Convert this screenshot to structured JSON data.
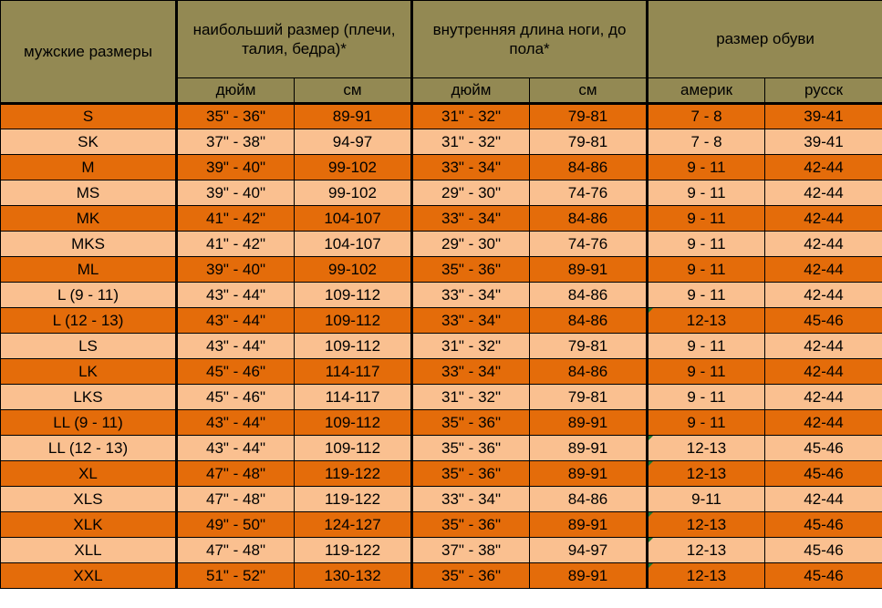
{
  "header": {
    "size_label": "мужские размеры",
    "girth_label": "наибольший размер (плечи, талия, бедра)*",
    "inseam_label": "внутренняя длина ноги, до пола*",
    "shoe_label": "размер обуви",
    "units": {
      "girth_inch": "дюйм",
      "girth_cm": "см",
      "inseam_inch": "дюйм",
      "inseam_cm": "см",
      "shoe_us": "америк",
      "shoe_ru": "русск"
    }
  },
  "rows": [
    {
      "size": "S",
      "girth_in": "35\" - 36\"",
      "girth_cm": "89-91",
      "inseam_in": "31\" - 32\"",
      "inseam_cm": "79-81",
      "shoe_us": "7 - 8",
      "shoe_ru": "39-41"
    },
    {
      "size": "SK",
      "girth_in": "37\" - 38\"",
      "girth_cm": "94-97",
      "inseam_in": "31\" - 32\"",
      "inseam_cm": "79-81",
      "shoe_us": "7 - 8",
      "shoe_ru": "39-41"
    },
    {
      "size": "M",
      "girth_in": "39\" - 40\"",
      "girth_cm": "99-102",
      "inseam_in": "33\" - 34\"",
      "inseam_cm": "84-86",
      "shoe_us": "9 - 11",
      "shoe_ru": "42-44"
    },
    {
      "size": "MS",
      "girth_in": "39\" - 40\"",
      "girth_cm": "99-102",
      "inseam_in": "29\" - 30\"",
      "inseam_cm": "74-76",
      "shoe_us": "9 - 11",
      "shoe_ru": "42-44"
    },
    {
      "size": "MK",
      "girth_in": "41\" - 42\"",
      "girth_cm": "104-107",
      "inseam_in": "33\" - 34\"",
      "inseam_cm": "84-86",
      "shoe_us": "9 - 11",
      "shoe_ru": "42-44"
    },
    {
      "size": "MKS",
      "girth_in": "41\" - 42\"",
      "girth_cm": "104-107",
      "inseam_in": "29\" - 30\"",
      "inseam_cm": "74-76",
      "shoe_us": "9 - 11",
      "shoe_ru": "42-44"
    },
    {
      "size": "ML",
      "girth_in": "39\" - 40\"",
      "girth_cm": "99-102",
      "inseam_in": "35\" - 36\"",
      "inseam_cm": "89-91",
      "shoe_us": "9 - 11",
      "shoe_ru": "42-44"
    },
    {
      "size": "L (9 - 11)",
      "girth_in": "43\" - 44\"",
      "girth_cm": "109-112",
      "inseam_in": "33\" - 34\"",
      "inseam_cm": "84-86",
      "shoe_us": "9 - 11",
      "shoe_ru": "42-44"
    },
    {
      "size": "L (12 - 13)",
      "girth_in": "43\" - 44\"",
      "girth_cm": "109-112",
      "inseam_in": "33\" - 34\"",
      "inseam_cm": "84-86",
      "shoe_us": "12-13",
      "shoe_ru": "45-46",
      "marker": true
    },
    {
      "size": "LS",
      "girth_in": "43\" - 44\"",
      "girth_cm": "109-112",
      "inseam_in": "31\" - 32\"",
      "inseam_cm": "79-81",
      "shoe_us": "9 - 11",
      "shoe_ru": "42-44"
    },
    {
      "size": "LK",
      "girth_in": "45\" - 46\"",
      "girth_cm": "114-117",
      "inseam_in": "33\" - 34\"",
      "inseam_cm": "84-86",
      "shoe_us": "9 - 11",
      "shoe_ru": "42-44"
    },
    {
      "size": "LKS",
      "girth_in": "45\" - 46\"",
      "girth_cm": "114-117",
      "inseam_in": "31\" - 32\"",
      "inseam_cm": "79-81",
      "shoe_us": "9 - 11",
      "shoe_ru": "42-44"
    },
    {
      "size": "LL (9 - 11)",
      "girth_in": "43\" - 44\"",
      "girth_cm": "109-112",
      "inseam_in": "35\" - 36\"",
      "inseam_cm": "89-91",
      "shoe_us": "9 - 11",
      "shoe_ru": "42-44"
    },
    {
      "size": "LL (12 - 13)",
      "girth_in": "43\" - 44\"",
      "girth_cm": "109-112",
      "inseam_in": "35\" - 36\"",
      "inseam_cm": "89-91",
      "shoe_us": "12-13",
      "shoe_ru": "45-46",
      "marker": true
    },
    {
      "size": "XL",
      "girth_in": "47\" - 48\"",
      "girth_cm": "119-122",
      "inseam_in": "35\" - 36\"",
      "inseam_cm": "89-91",
      "shoe_us": "12-13",
      "shoe_ru": "45-46",
      "marker": true
    },
    {
      "size": "XLS",
      "girth_in": "47\" - 48\"",
      "girth_cm": "119-122",
      "inseam_in": "33\" - 34\"",
      "inseam_cm": "84-86",
      "shoe_us": "9-11",
      "shoe_ru": "42-44"
    },
    {
      "size": "XLK",
      "girth_in": "49\" - 50\"",
      "girth_cm": "124-127",
      "inseam_in": "35\" - 36\"",
      "inseam_cm": "89-91",
      "shoe_us": "12-13",
      "shoe_ru": "45-46",
      "marker": true
    },
    {
      "size": "XLL",
      "girth_in": "47\" - 48\"",
      "girth_cm": "119-122",
      "inseam_in": "37\" - 38\"",
      "inseam_cm": "94-97",
      "shoe_us": "12-13",
      "shoe_ru": "45-46",
      "marker": true
    },
    {
      "size": "XXL",
      "girth_in": "51\" - 52\"",
      "girth_cm": "130-132",
      "inseam_in": "35\" - 36\"",
      "inseam_cm": "89-91",
      "shoe_us": "12-13",
      "shoe_ru": "45-46",
      "marker": true
    }
  ],
  "colors": {
    "header": "#938953",
    "row_dark": "#e46c0a",
    "row_light": "#fac090",
    "marker": "#1d7a2e"
  }
}
